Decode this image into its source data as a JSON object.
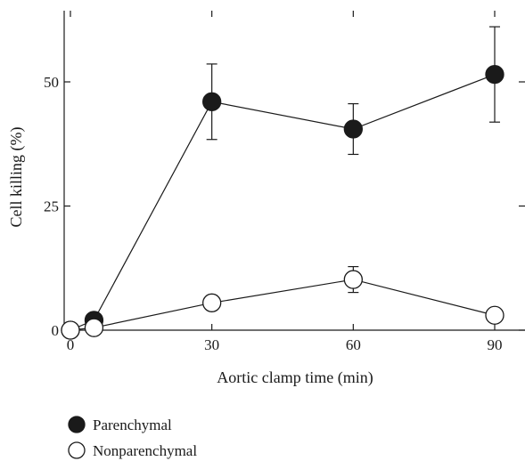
{
  "chart_data": {
    "type": "line",
    "xlabel": "Aortic clamp time (min)",
    "ylabel": "Cell killing (%)",
    "xlim": [
      -1,
      98
    ],
    "ylim": [
      0,
      64
    ],
    "xticks": [
      0,
      30,
      60,
      90
    ],
    "yticks": [
      0,
      25,
      50
    ],
    "grid": false,
    "legend_position": "bottom-left",
    "series": [
      {
        "name": "Parenchymal",
        "marker": "filled-circle",
        "color": "#1a1a1a",
        "points": [
          {
            "x": 0,
            "y": 0,
            "err": 0
          },
          {
            "x": 5,
            "y": 2,
            "err": 0
          },
          {
            "x": 30,
            "y": 46,
            "err": 7.6
          },
          {
            "x": 60,
            "y": 40.5,
            "err": 5.1
          },
          {
            "x": 90,
            "y": 51.5,
            "err": 9.6
          }
        ]
      },
      {
        "name": "Nonparenchymal",
        "marker": "open-circle",
        "color": "#1a1a1a",
        "points": [
          {
            "x": 0,
            "y": 0,
            "err": 0
          },
          {
            "x": 5,
            "y": 0.5,
            "err": 0
          },
          {
            "x": 30,
            "y": 5.5,
            "err": 1.5
          },
          {
            "x": 60,
            "y": 10.2,
            "err": 2.6
          },
          {
            "x": 90,
            "y": 3,
            "err": 0
          }
        ]
      }
    ]
  }
}
